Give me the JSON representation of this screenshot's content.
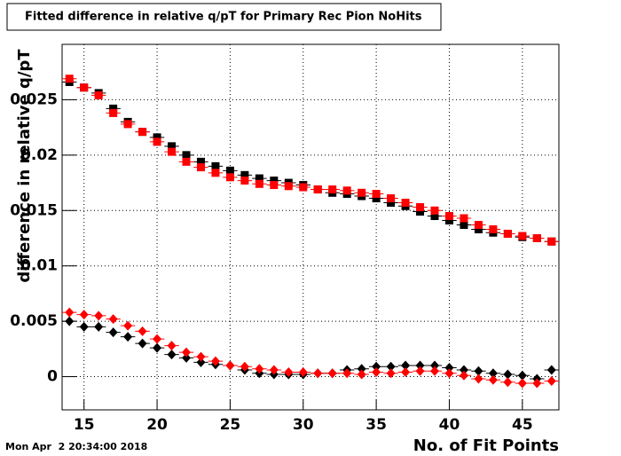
{
  "chart_data": {
    "type": "scatter",
    "title": "Fitted difference in relative q/pT for Primary Rec Pion NoHits",
    "x_label": "No. of Fit Points",
    "y_label": "difference in relative q/pT",
    "timestamp": "Mon Apr  2 20:34:00 2018",
    "xlim": [
      13.5,
      47.5
    ],
    "ylim": [
      -0.003,
      0.03
    ],
    "xticks": [
      15,
      20,
      25,
      30,
      35,
      40,
      45
    ],
    "yticks": [
      0,
      0.005,
      0.01,
      0.015,
      0.02,
      0.025
    ],
    "grid": true,
    "x_error": 0.5,
    "x": [
      14,
      15,
      16,
      17,
      18,
      19,
      20,
      21,
      22,
      23,
      24,
      25,
      26,
      27,
      28,
      29,
      30,
      31,
      32,
      33,
      34,
      35,
      36,
      37,
      38,
      39,
      40,
      41,
      42,
      43,
      44,
      45,
      46,
      47
    ],
    "series": [
      {
        "color": "#000000",
        "marker": "square",
        "values": [
          0.0266,
          0.0261,
          0.0256,
          0.0242,
          0.023,
          0.0221,
          0.0216,
          0.0208,
          0.02,
          0.0194,
          0.019,
          0.0186,
          0.0182,
          0.0179,
          0.0177,
          0.0175,
          0.0173,
          0.0169,
          0.0166,
          0.0165,
          0.0163,
          0.0161,
          0.0157,
          0.0154,
          0.0149,
          0.0145,
          0.0141,
          0.0137,
          0.0133,
          0.013,
          0.0129,
          0.0126,
          0.0125,
          0.0122
        ]
      },
      {
        "color": "#ff0000",
        "marker": "square",
        "values": [
          0.0269,
          0.0261,
          0.0254,
          0.0238,
          0.0228,
          0.0221,
          0.0212,
          0.0203,
          0.0194,
          0.0189,
          0.0184,
          0.018,
          0.0177,
          0.0174,
          0.0173,
          0.0172,
          0.0171,
          0.0169,
          0.0169,
          0.0168,
          0.0166,
          0.0165,
          0.0161,
          0.0157,
          0.0153,
          0.015,
          0.0145,
          0.0143,
          0.0137,
          0.0133,
          0.0129,
          0.0127,
          0.0125,
          0.0122
        ]
      },
      {
        "color": "#000000",
        "marker": "diamond",
        "values": [
          0.005,
          0.0045,
          0.0045,
          0.004,
          0.0036,
          0.003,
          0.0026,
          0.002,
          0.0017,
          0.0013,
          0.0011,
          0.001,
          0.0006,
          0.0003,
          0.0002,
          0.0002,
          0.0002,
          0.0003,
          0.0003,
          0.0006,
          0.0007,
          0.0009,
          0.0009,
          0.001,
          0.001,
          0.001,
          0.0008,
          0.0006,
          0.0005,
          0.0003,
          0.0002,
          0.0001,
          -0.0002,
          0.0006
        ]
      },
      {
        "color": "#ff0000",
        "marker": "diamond",
        "values": [
          0.0058,
          0.0056,
          0.0055,
          0.0052,
          0.0046,
          0.0041,
          0.0034,
          0.0028,
          0.0022,
          0.0018,
          0.0014,
          0.001,
          0.0009,
          0.0007,
          0.0006,
          0.0004,
          0.0004,
          0.0003,
          0.0003,
          0.0003,
          0.0002,
          0.0004,
          0.0003,
          0.0004,
          0.0005,
          0.0005,
          0.0003,
          0.0001,
          -0.0002,
          -0.0003,
          -0.0005,
          -0.0006,
          -0.0006,
          -0.0004
        ]
      }
    ]
  }
}
